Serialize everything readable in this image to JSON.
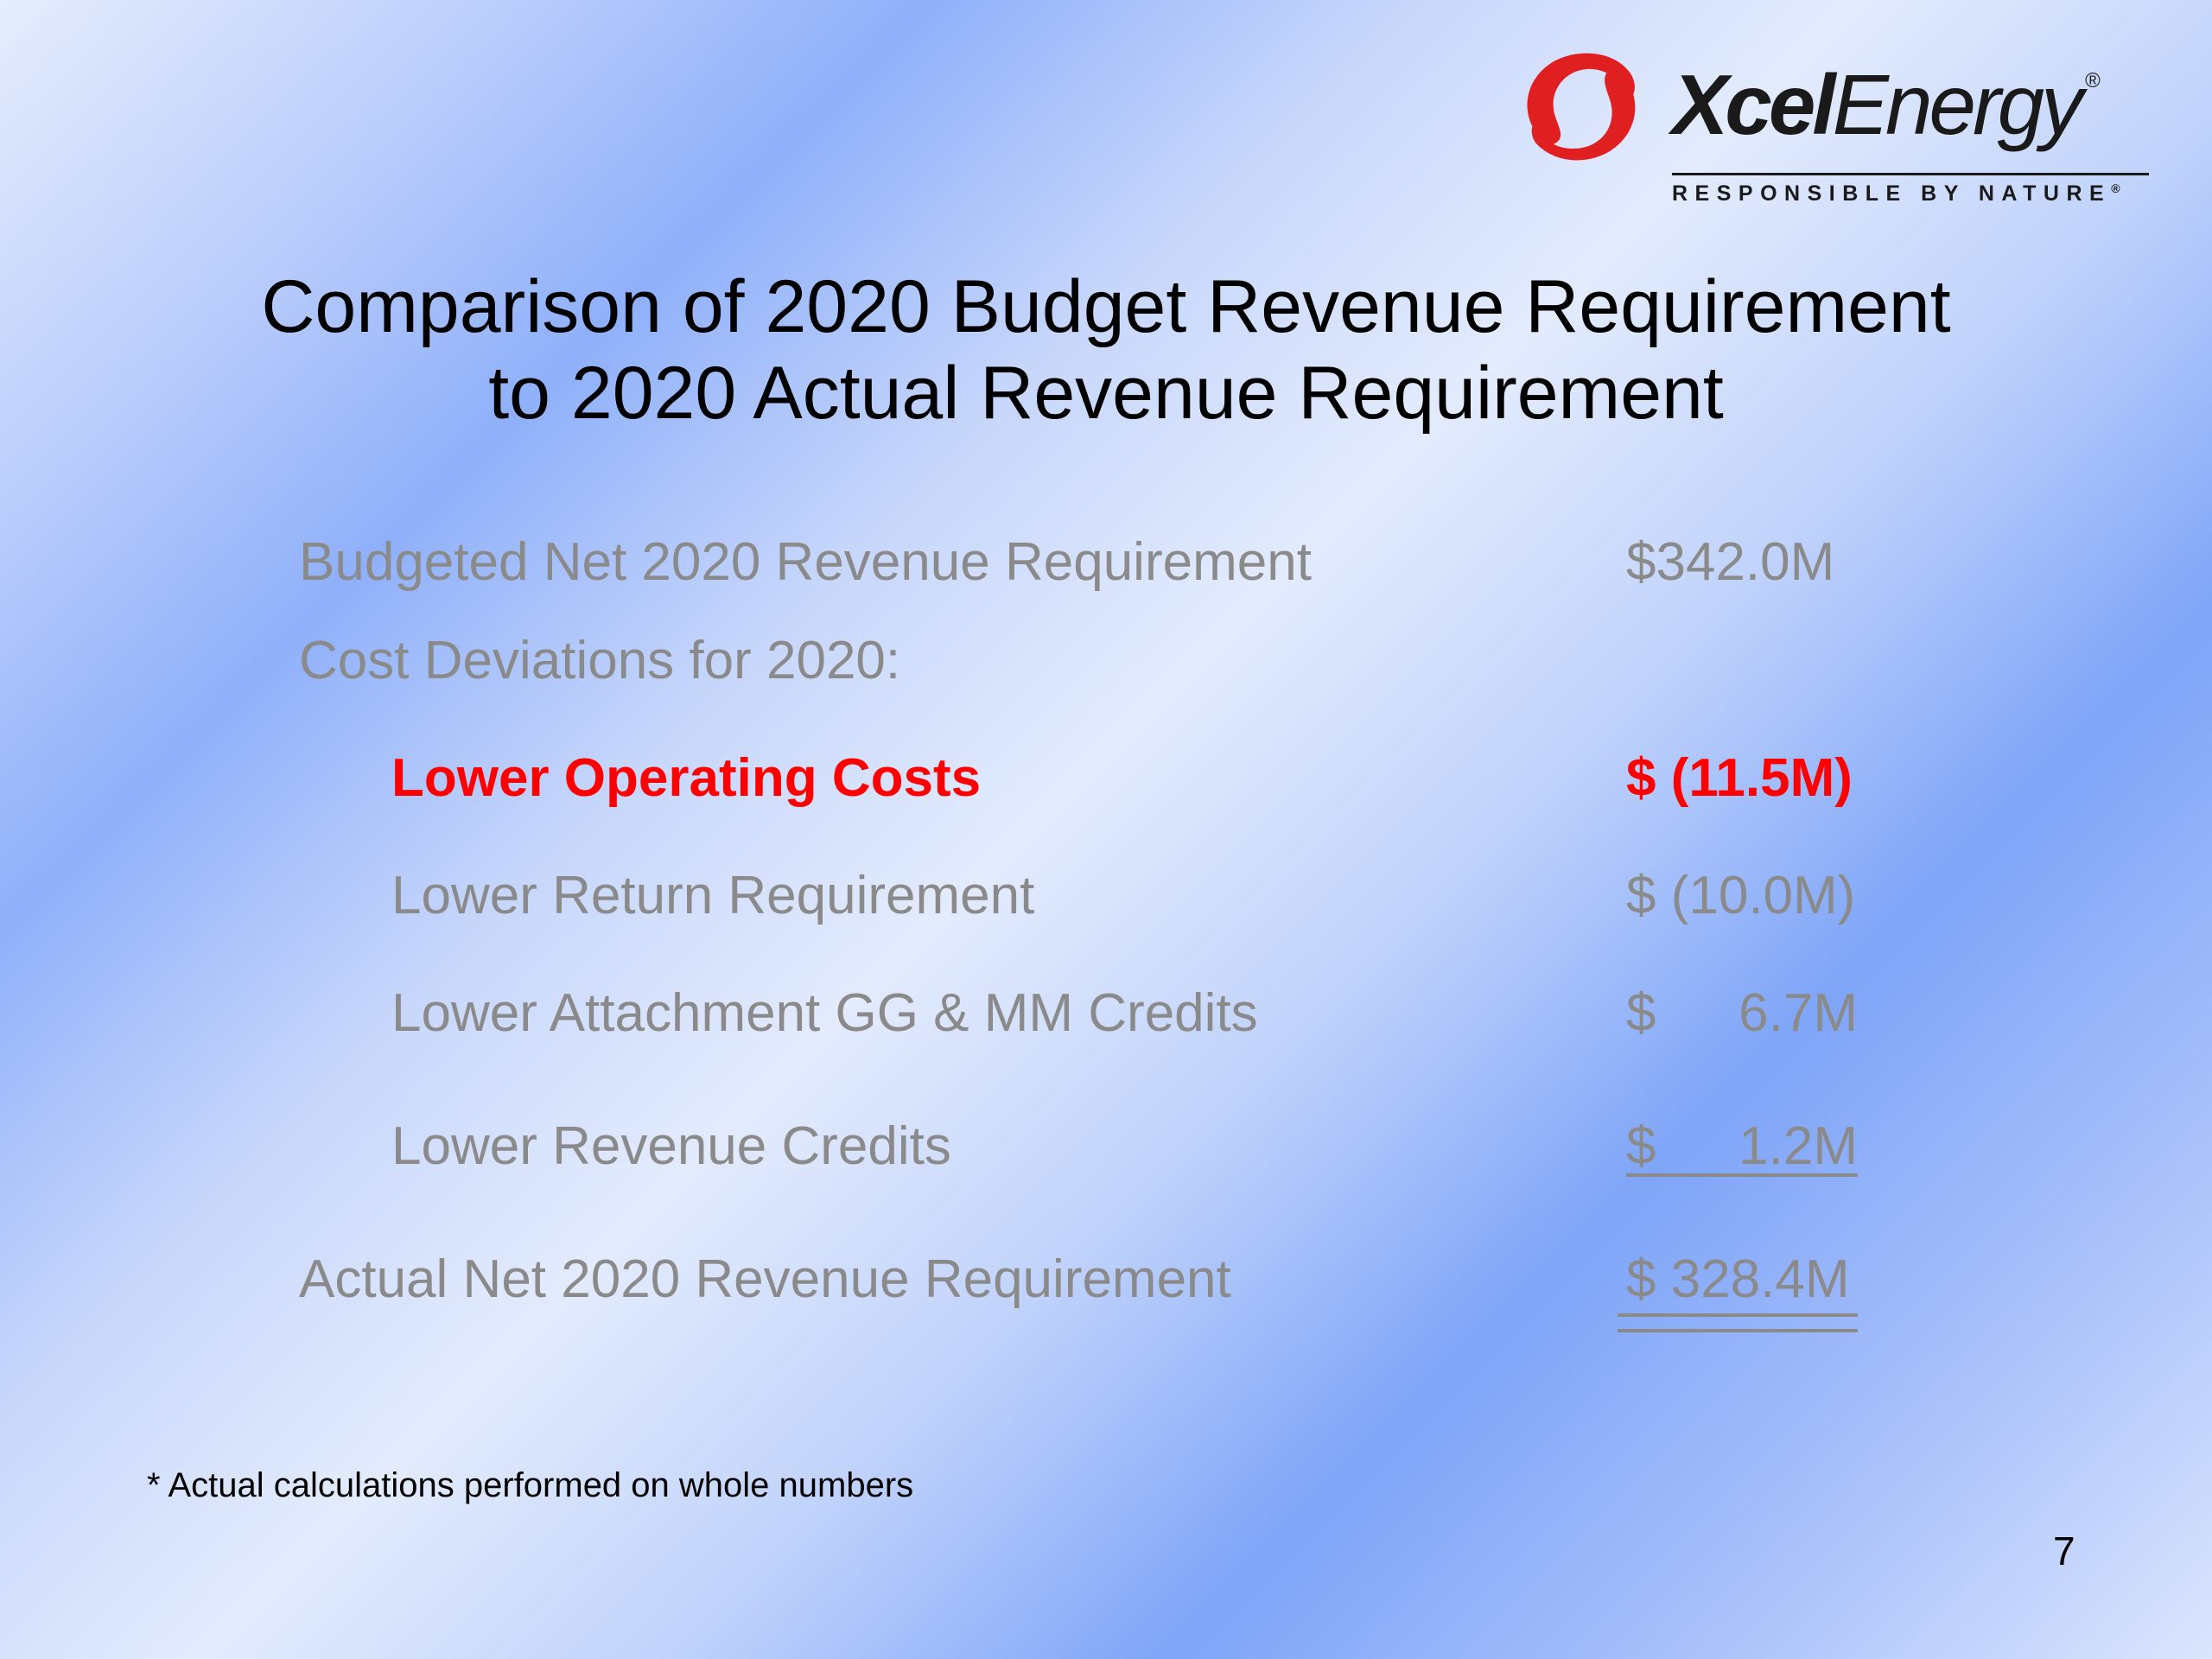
{
  "logo": {
    "word_bold": "Xcel",
    "word_regular": "Energy",
    "registered": "®",
    "tagline": "RESPONSIBLE BY NATURE",
    "brand_color": "#e02020"
  },
  "title": {
    "line1": "Comparison of 2020 Budget Revenue Requirement",
    "line2": "to 2020 Actual Revenue Requirement"
  },
  "rows": {
    "budgeted": {
      "label": "Budgeted Net 2020 Revenue Requirement",
      "amount": "$342.0M"
    },
    "deviations_header": {
      "label": "Cost Deviations for 2020:"
    },
    "operating": {
      "label": "Lower Operating Costs",
      "amount": "$ (11.5M)"
    },
    "return": {
      "label": "Lower Return Requirement",
      "amount": "$ (10.0M)"
    },
    "attachment": {
      "label": "Lower Attachment GG & MM Credits",
      "currency": "$",
      "value": "6.7M"
    },
    "revenue_credits": {
      "label": "Lower Revenue Credits",
      "currency": "$",
      "value": "1.2M"
    },
    "actual": {
      "label": "Actual Net 2020 Revenue Requirement",
      "amount": "$ 328.4M"
    }
  },
  "footnote": "* Actual calculations performed on whole numbers",
  "page_number": "7",
  "colors": {
    "highlight": "#ff0000",
    "muted_text": "#8a8a8a"
  }
}
